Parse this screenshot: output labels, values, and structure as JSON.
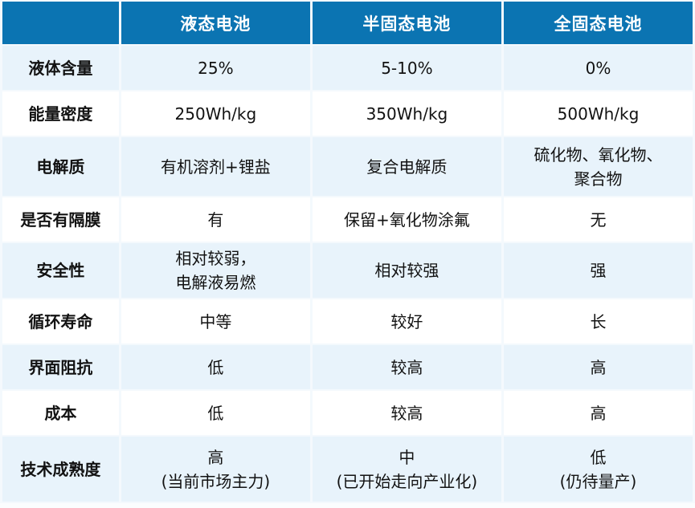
{
  "table": {
    "title_semantic": "battery-type-comparison",
    "columns": [
      "",
      "液态电池",
      "半固态电池",
      "全固态电池"
    ],
    "rows": [
      {
        "label": "液体含量",
        "cells": [
          "25%",
          "5-10%",
          "0%"
        ]
      },
      {
        "label": "能量密度",
        "cells": [
          "250Wh/kg",
          "350Wh/kg",
          "500Wh/kg"
        ]
      },
      {
        "label": "电解质",
        "cells": [
          "有机溶剂+锂盐",
          "复合电解质",
          [
            "硫化物、氧化物、",
            "聚合物"
          ]
        ]
      },
      {
        "label": "是否有隔膜",
        "cells": [
          "有",
          "保留+氧化物涂氟",
          "无"
        ]
      },
      {
        "label": "安全性",
        "cells": [
          [
            "相对较弱，",
            "电解液易燃"
          ],
          "相对较强",
          "强"
        ]
      },
      {
        "label": "循环寿命",
        "cells": [
          "中等",
          "较好",
          "长"
        ]
      },
      {
        "label": "界面阻抗",
        "cells": [
          "低",
          "较高",
          "高"
        ]
      },
      {
        "label": "成本",
        "cells": [
          "低",
          "较高",
          "高"
        ]
      },
      {
        "label": "技术成熟度",
        "cells": [
          [
            "高",
            "(当前市场主力)"
          ],
          [
            "中",
            "(已开始走向产业化)"
          ],
          [
            "低",
            "(仍待量产)"
          ]
        ]
      }
    ],
    "colors": {
      "header_bg": "#0b74b2",
      "header_text": "#ffffff",
      "row_alt_bg": "#e8f3fb",
      "row_bg": "#ffffff",
      "body_text": "#121212"
    }
  }
}
